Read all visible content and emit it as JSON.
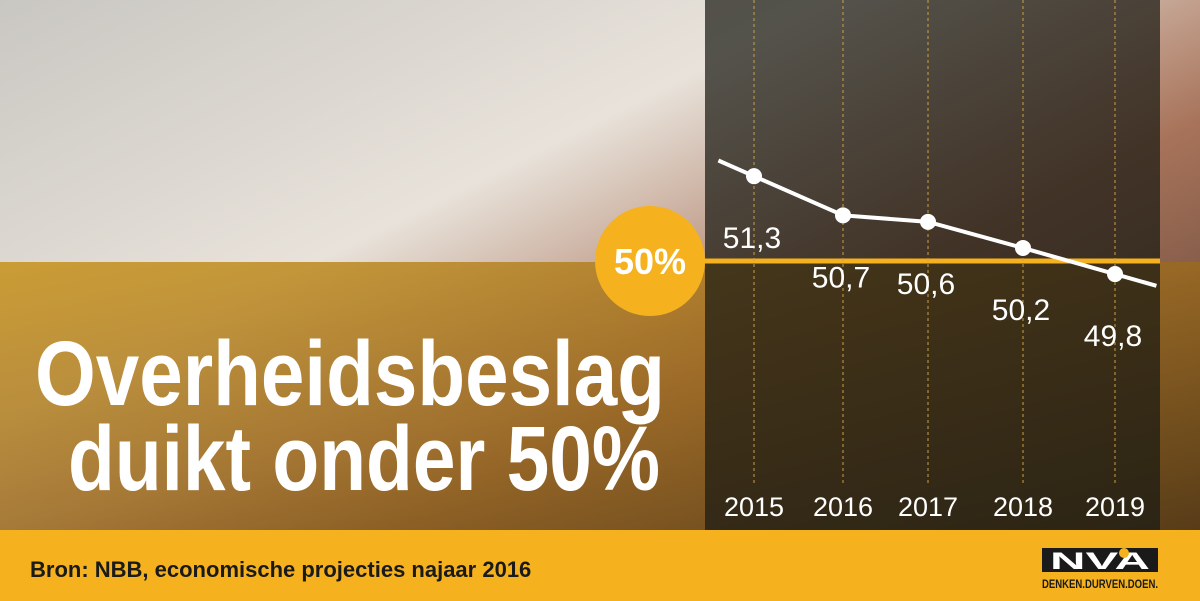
{
  "chart_data": {
    "type": "line",
    "title": [
      "Overheidsbeslag",
      "duikt onder 50%"
    ],
    "categories": [
      "2015",
      "2016",
      "2017",
      "2018",
      "2019"
    ],
    "values": [
      51.3,
      50.7,
      50.6,
      50.2,
      49.8
    ],
    "value_labels": [
      "51,3",
      "50,7",
      "50,6",
      "50,2",
      "49,8"
    ],
    "color": "#ffffff",
    "ylim": [
      46,
      54
    ],
    "reference_line": {
      "value": 50,
      "label": "50%",
      "color": "#f5b21e"
    },
    "source": "Bron: NBB, economische projecties najaar 2016"
  },
  "logo": {
    "text": "NVA",
    "slogan": "DENKEN.DURVEN.DOEN."
  }
}
